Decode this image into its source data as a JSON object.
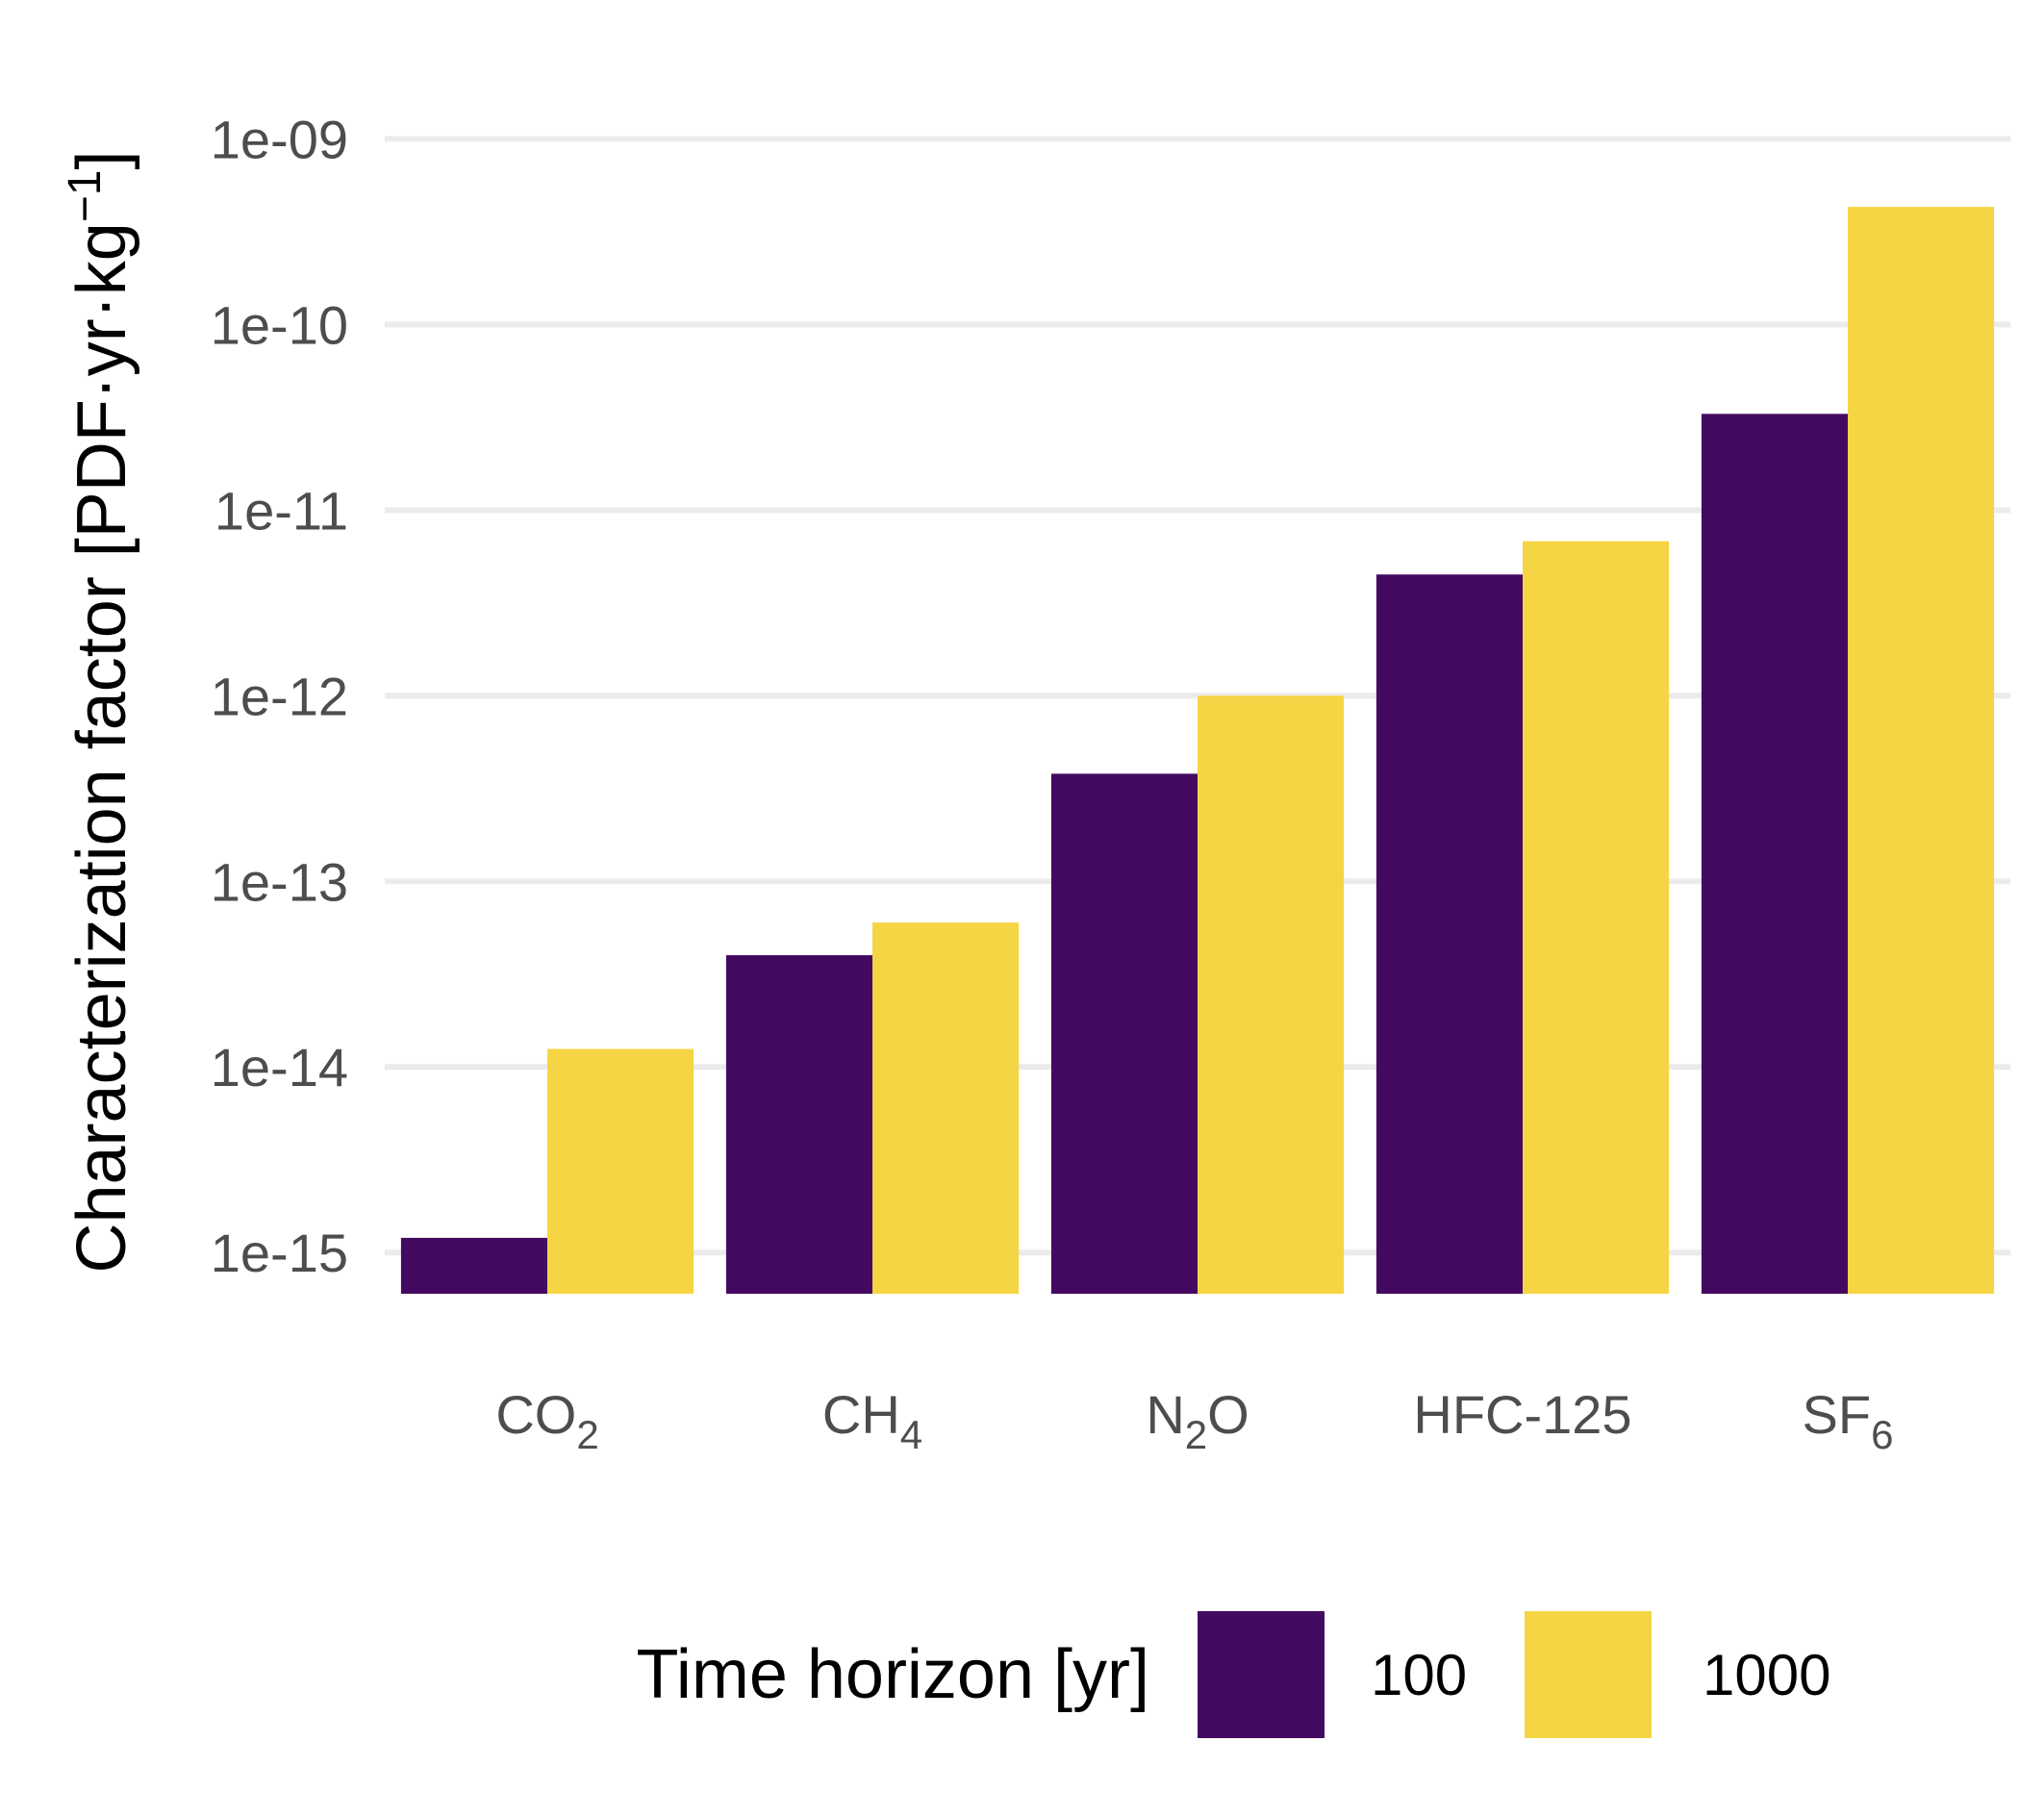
{
  "chart_data": {
    "type": "bar",
    "scale": "log10",
    "categories": [
      "CO2",
      "CH4",
      "N2O",
      "HFC-125",
      "SF6"
    ],
    "category_labels": [
      {
        "base": "CO",
        "sub": "2",
        "tail": ""
      },
      {
        "base": "CH",
        "sub": "4",
        "tail": ""
      },
      {
        "base": "N",
        "sub": "2",
        "tail": "O"
      },
      {
        "base": "HFC-125",
        "sub": "",
        "tail": ""
      },
      {
        "base": "SF",
        "sub": "6",
        "tail": ""
      }
    ],
    "series": [
      {
        "name": "100",
        "color": "#440a62",
        "values": [
          1.2e-15,
          4e-14,
          3.8e-13,
          4.5e-12,
          3.3e-11
        ]
      },
      {
        "name": "1000",
        "color": "#f5d544",
        "values": [
          1.25e-14,
          6e-14,
          1e-12,
          6.8e-12,
          4.3e-10
        ]
      }
    ],
    "yticks": [
      1e-15,
      1e-14,
      1e-13,
      1e-12,
      1e-11,
      1e-10,
      1e-09
    ],
    "ytick_labels": [
      "1e-15",
      "1e-14",
      "1e-13",
      "1e-12",
      "1e-11",
      "1e-10",
      "1e-09"
    ],
    "ylim": [
      6e-16,
      1.6e-09
    ],
    "ylabel": {
      "main": "Characterization factor [PDF·yr·kg",
      "sup": "−1",
      "close": "]"
    },
    "grid": "horizontal",
    "legend": {
      "title": "Time horizon [yr]",
      "position": "bottom"
    }
  }
}
